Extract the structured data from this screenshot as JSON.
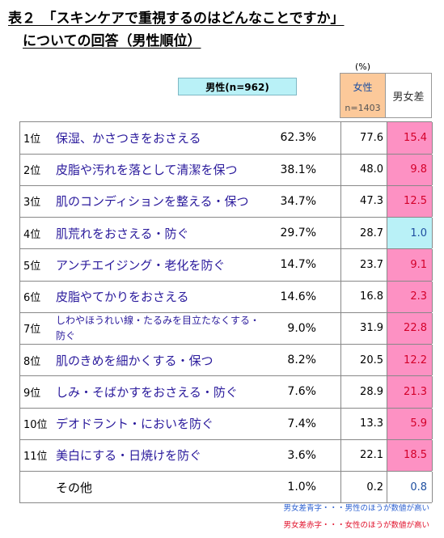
{
  "title": {
    "line1": "表２　「スキンケアで重視するのはどんなことですか」",
    "line2": "についての回答（男性順位）"
  },
  "header": {
    "unit": "(%)",
    "male": "男性(n=962)",
    "female": "女性",
    "female_n": "n=1403",
    "diff": "男女差"
  },
  "rows": [
    {
      "rank": "1位",
      "label": "保湿、かさつきをおさえる",
      "male": "62.3%",
      "female": "77.6",
      "diff": "15.4",
      "diff_color": "red"
    },
    {
      "rank": "2位",
      "label": "皮脂や汚れを落として清潔を保つ",
      "male": "38.1%",
      "female": "48.0",
      "diff": "9.8",
      "diff_color": "red"
    },
    {
      "rank": "3位",
      "label": "肌のコンディションを整える・保つ",
      "male": "34.7%",
      "female": "47.3",
      "diff": "12.5",
      "diff_color": "red"
    },
    {
      "rank": "4位",
      "label": "肌荒れをおさえる・防ぐ",
      "male": "29.7%",
      "female": "28.7",
      "diff": "1.0",
      "diff_color": "blue"
    },
    {
      "rank": "5位",
      "label": "アンチエイジング・老化を防ぐ",
      "male": "14.7%",
      "female": "23.7",
      "diff": "9.1",
      "diff_color": "red"
    },
    {
      "rank": "6位",
      "label": "皮脂やてかりをおさえる",
      "male": "14.6%",
      "female": "16.8",
      "diff": "2.3",
      "diff_color": "red"
    },
    {
      "rank": "7位",
      "label": "しわやほうれい線・たるみを目立たなくする・防ぐ",
      "male": "9.0%",
      "female": "31.9",
      "diff": "22.8",
      "diff_color": "red"
    },
    {
      "rank": "8位",
      "label": "肌のきめを細かくする・保つ",
      "male": "8.2%",
      "female": "20.5",
      "diff": "12.2",
      "diff_color": "red"
    },
    {
      "rank": "9位",
      "label": "しみ・そばかすをおさえる・防ぐ",
      "male": "7.6%",
      "female": "28.9",
      "diff": "21.3",
      "diff_color": "red"
    },
    {
      "rank": "10位",
      "label": "デオドラント・においを防ぐ",
      "male": "7.4%",
      "female": "13.3",
      "diff": "5.9",
      "diff_color": "red"
    },
    {
      "rank": "11位",
      "label": "美白にする・日焼けを防ぐ",
      "male": "3.6%",
      "female": "22.1",
      "diff": "18.5",
      "diff_color": "red"
    },
    {
      "rank": "",
      "label": "その他",
      "male": "1.0%",
      "female": "0.2",
      "diff": "0.8",
      "diff_color": "white"
    }
  ],
  "legend": {
    "blue": "男女差青字・・・男性のほうが数値が高い",
    "red": "男女差赤字・・・女性のほうが数値が高い"
  }
}
